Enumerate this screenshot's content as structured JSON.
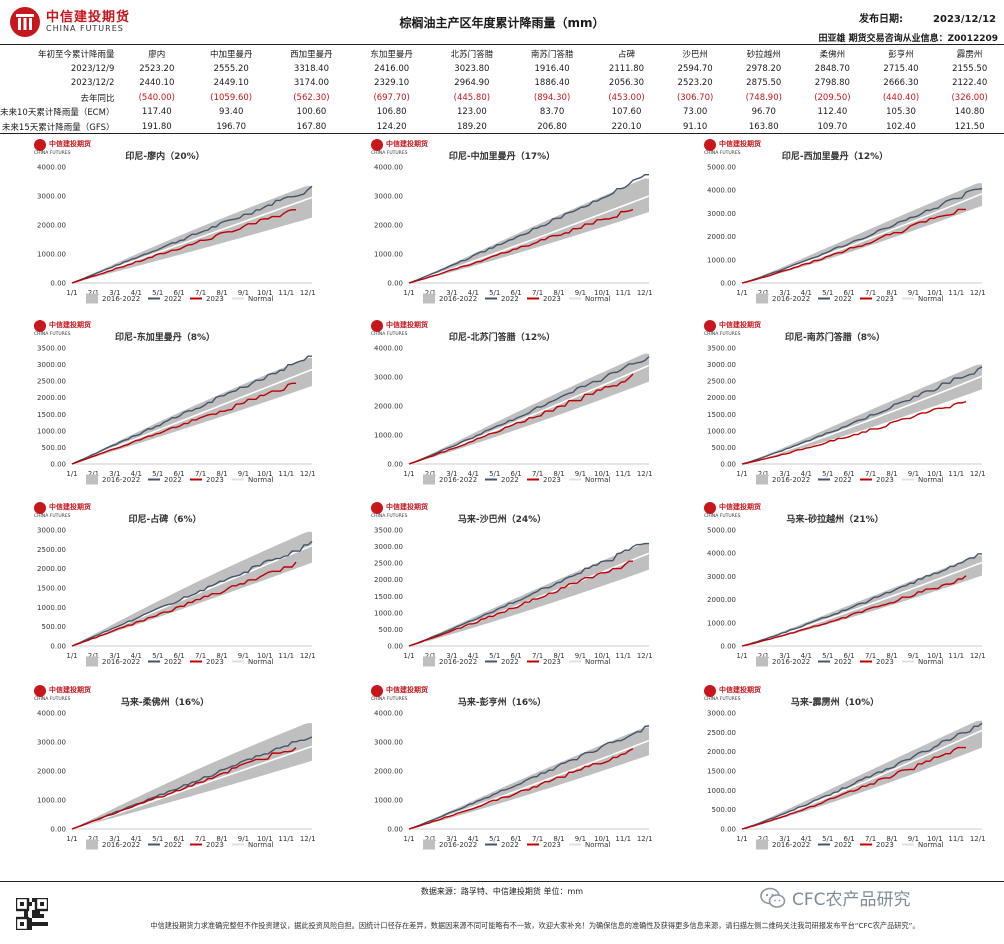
{
  "header": {
    "logo_cn": "中信建投期货",
    "logo_en": "CHINA FUTURES",
    "title": "棕榈油主产区年度累计降雨量（mm）",
    "date_label": "发布日期:",
    "date_value": "2023/12/12",
    "license": "田亚雄 期货交易咨询从业信息：Z0012209"
  },
  "table": {
    "regions": [
      "廖内",
      "中加里曼丹",
      "西加里曼丹",
      "东加里曼丹",
      "北苏门答腊",
      "南苏门答腊",
      "占碑",
      "沙巴州",
      "砂拉越州",
      "柔佛州",
      "彭亨州",
      "霹雳州"
    ],
    "rows": [
      {
        "label": "年初至今累计降雨量",
        "values": [
          "",
          "",
          "",
          "",
          "",
          "",
          "",
          "",
          "",
          "",
          "",
          ""
        ]
      },
      {
        "label": "2023/12/9",
        "values": [
          "2523.20",
          "2555.20",
          "3318.40",
          "2416.00",
          "3023.80",
          "1916.40",
          "2111.80",
          "2594.70",
          "2978.20",
          "2848.70",
          "2715.40",
          "2155.50"
        ]
      },
      {
        "label": "2023/12/2",
        "values": [
          "2440.10",
          "2449.10",
          "3174.00",
          "2329.10",
          "2964.90",
          "1886.40",
          "2056.30",
          "2523.20",
          "2875.50",
          "2798.80",
          "2666.30",
          "2122.40"
        ]
      },
      {
        "label": "去年同比",
        "values": [
          "(540.00)",
          "(1059.60)",
          "(562.30)",
          "(697.70)",
          "(445.80)",
          "(894.30)",
          "(453.00)",
          "(306.70)",
          "(748.90)",
          "(209.50)",
          "(440.40)",
          "(326.00)"
        ]
      },
      {
        "label": "未来10天累计降雨量（ECM）",
        "values": [
          "117.40",
          "93.40",
          "100.60",
          "106.80",
          "123.00",
          "83.70",
          "107.60",
          "73.00",
          "96.70",
          "112.40",
          "105.30",
          "140.80"
        ]
      },
      {
        "label": "未来15天累计降雨量（GFS）",
        "values": [
          "191.80",
          "196.70",
          "167.80",
          "124.20",
          "189.20",
          "206.80",
          "220.10",
          "91.10",
          "163.80",
          "109.70",
          "102.40",
          "121.50"
        ]
      }
    ]
  },
  "legend": {
    "band": "2016-2022",
    "y2022": "2022",
    "y2023": "2023",
    "normal": "Normal"
  },
  "colors": {
    "band": "#bfbfbf",
    "y2022": "#44546a",
    "y2023": "#c00000",
    "normal": "#ffffff",
    "brand": "#c8161d"
  },
  "chart_data": [
    {
      "type": "area",
      "title": "印尼-廖内（20%）",
      "ylim": [
        0,
        4000
      ],
      "yticks": [
        "0.00",
        "1000.00",
        "2000.00",
        "3000.00",
        "4000.00"
      ],
      "x": [
        "1/1",
        "2/1",
        "3/1",
        "4/1",
        "5/1",
        "6/1",
        "7/1",
        "8/1",
        "9/1",
        "10/1",
        "11/1",
        "12/1"
      ],
      "final_2022": 3270,
      "final_normal": 2950,
      "final_band_low": 2300,
      "final_band_high": 3350,
      "last_2023": 2523.2
    },
    {
      "type": "area",
      "title": "印尼-中加里曼丹（17%）",
      "ylim": [
        0,
        4000
      ],
      "yticks": [
        "0.00",
        "1000.00",
        "2000.00",
        "3000.00",
        "4000.00"
      ],
      "x": [
        "1/1",
        "2/1",
        "3/1",
        "4/1",
        "5/1",
        "6/1",
        "7/1",
        "8/1",
        "9/1",
        "10/1",
        "11/1",
        "12/1"
      ],
      "final_2022": 3700,
      "final_normal": 3000,
      "final_band_low": 2500,
      "final_band_high": 3600,
      "last_2023": 2555.2
    },
    {
      "type": "area",
      "title": "印尼-西加里曼丹（12%）",
      "ylim": [
        0,
        5000
      ],
      "yticks": [
        "0.00",
        "1000.00",
        "2000.00",
        "3000.00",
        "4000.00",
        "5000.00"
      ],
      "x": [
        "1/1",
        "2/1",
        "3/1",
        "4/1",
        "5/1",
        "6/1",
        "7/1",
        "8/1",
        "9/1",
        "10/1",
        "11/1",
        "12/1"
      ],
      "final_2022": 4150,
      "final_normal": 3850,
      "final_band_low": 3400,
      "final_band_high": 4300,
      "last_2023": 3318.4
    },
    {
      "type": "area",
      "title": "印尼-东加里曼丹（8%）",
      "ylim": [
        0,
        3500
      ],
      "yticks": [
        "0.00",
        "500.00",
        "1000.00",
        "1500.00",
        "2000.00",
        "2500.00",
        "3000.00",
        "3500.00"
      ],
      "x": [
        "1/1",
        "2/1",
        "3/1",
        "4/1",
        "5/1",
        "6/1",
        "7/1",
        "8/1",
        "9/1",
        "10/1",
        "11/1",
        "12/1"
      ],
      "final_2022": 3250,
      "final_normal": 2850,
      "final_band_low": 2400,
      "final_band_high": 3200,
      "last_2023": 2416.0
    },
    {
      "type": "area",
      "title": "印尼-北苏门答腊（12%）",
      "ylim": [
        0,
        4000
      ],
      "yticks": [
        "0.00",
        "1000.00",
        "2000.00",
        "3000.00",
        "4000.00"
      ],
      "x": [
        "1/1",
        "2/1",
        "3/1",
        "4/1",
        "5/1",
        "6/1",
        "7/1",
        "8/1",
        "9/1",
        "10/1",
        "11/1",
        "12/1"
      ],
      "final_2022": 3700,
      "final_normal": 3400,
      "final_band_low": 2900,
      "final_band_high": 3800,
      "last_2023": 3023.8
    },
    {
      "type": "area",
      "title": "印尼-南苏门答腊（8%）",
      "ylim": [
        0,
        3500
      ],
      "yticks": [
        "0.00",
        "500.00",
        "1000.00",
        "1500.00",
        "2000.00",
        "2500.00",
        "3000.00",
        "3500.00"
      ],
      "x": [
        "1/1",
        "2/1",
        "3/1",
        "4/1",
        "5/1",
        "6/1",
        "7/1",
        "8/1",
        "9/1",
        "10/1",
        "11/1",
        "12/1"
      ],
      "final_2022": 2900,
      "final_normal": 2650,
      "final_band_low": 2300,
      "final_band_high": 3000,
      "last_2023": 1916.4
    },
    {
      "type": "area",
      "title": "印尼-占碑（6%）",
      "ylim": [
        0,
        3000
      ],
      "yticks": [
        "0.00",
        "500.00",
        "1000.00",
        "1500.00",
        "2000.00",
        "2500.00",
        "3000.00"
      ],
      "x": [
        "1/1",
        "2/1",
        "3/1",
        "4/1",
        "5/1",
        "6/1",
        "7/1",
        "8/1",
        "9/1",
        "10/1",
        "11/1",
        "12/1"
      ],
      "final_2022": 2650,
      "final_normal": 2600,
      "final_band_low": 2200,
      "final_band_high": 2950,
      "last_2023": 2111.8
    },
    {
      "type": "area",
      "title": "马来-沙巴州（24%）",
      "ylim": [
        0,
        3500
      ],
      "yticks": [
        "0.00",
        "500.00",
        "1000.00",
        "1500.00",
        "2000.00",
        "2500.00",
        "3000.00",
        "3500.00"
      ],
      "x": [
        "1/1",
        "2/1",
        "3/1",
        "4/1",
        "5/1",
        "6/1",
        "7/1",
        "8/1",
        "9/1",
        "10/1",
        "11/1",
        "12/1"
      ],
      "final_2022": 3150,
      "final_normal": 2800,
      "final_band_low": 2350,
      "final_band_high": 3100,
      "last_2023": 2594.7
    },
    {
      "type": "area",
      "title": "马来-砂拉越州（21%）",
      "ylim": [
        0,
        5000
      ],
      "yticks": [
        "0.00",
        "1000.00",
        "2000.00",
        "3000.00",
        "4000.00",
        "5000.00"
      ],
      "x": [
        "1/1",
        "2/1",
        "3/1",
        "4/1",
        "5/1",
        "6/1",
        "7/1",
        "8/1",
        "9/1",
        "10/1",
        "11/1",
        "12/1"
      ],
      "final_2022": 3950,
      "final_normal": 3600,
      "final_band_low": 3100,
      "final_band_high": 3900,
      "last_2023": 2978.2
    },
    {
      "type": "area",
      "title": "马来-柔佛州（16%）",
      "ylim": [
        0,
        4000
      ],
      "yticks": [
        "0.00",
        "1000.00",
        "2000.00",
        "3000.00",
        "4000.00"
      ],
      "x": [
        "1/1",
        "2/1",
        "3/1",
        "4/1",
        "5/1",
        "6/1",
        "7/1",
        "8/1",
        "9/1",
        "10/1",
        "11/1",
        "12/1"
      ],
      "final_2022": 3200,
      "final_normal": 2850,
      "final_band_low": 2400,
      "final_band_high": 3650,
      "last_2023": 2848.7
    },
    {
      "type": "area",
      "title": "马来-彭亨州（16%）",
      "ylim": [
        0,
        4000
      ],
      "yticks": [
        "0.00",
        "1000.00",
        "2000.00",
        "3000.00",
        "4000.00"
      ],
      "x": [
        "1/1",
        "2/1",
        "3/1",
        "4/1",
        "5/1",
        "6/1",
        "7/1",
        "8/1",
        "9/1",
        "10/1",
        "11/1",
        "12/1"
      ],
      "final_2022": 3550,
      "final_normal": 3050,
      "final_band_low": 2600,
      "final_band_high": 3500,
      "last_2023": 2715.4
    },
    {
      "type": "area",
      "title": "马来-霹雳州（10%）",
      "ylim": [
        0,
        3000
      ],
      "yticks": [
        "0.00",
        "500.00",
        "1000.00",
        "1500.00",
        "2000.00",
        "2500.00",
        "3000.00"
      ],
      "x": [
        "1/1",
        "2/1",
        "3/1",
        "4/1",
        "5/1",
        "6/1",
        "7/1",
        "8/1",
        "9/1",
        "10/1",
        "11/1",
        "12/1"
      ],
      "final_2022": 2700,
      "final_normal": 2550,
      "final_band_low": 2150,
      "final_band_high": 2800,
      "last_2023": 2155.5
    }
  ],
  "footer": {
    "source": "数据来源：路孚特、中信建投期货      单位：mm",
    "disclaimer": "中信建投期货力求准确完整但不作投资建议，据此投资风险自担。因统计口径存在差异，数据因来源不同可能略有不一致，欢迎大家补充！为确保信息的准确性及获得更多信息来源，请扫描左侧二维码关注我司研报发布平台“CFC农产品研究”。",
    "watermark": "CFC农产品研究"
  }
}
